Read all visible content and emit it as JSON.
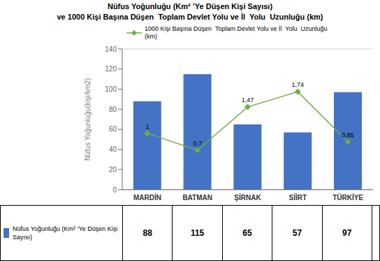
{
  "chart_data": {
    "type": "bar",
    "title": "Nüfus Yoğunluğu (Km² ’Ye Düşen Kişi Sayısı)\nve 1000 Kişi Başına Düşen  Toplam Devlet Yolu ve İl  Yolu  Uzunluğu (km)",
    "categories": [
      "MARDİN",
      "BATMAN",
      "ŞİRNAK",
      "SİİRT",
      "TÜRKİYE"
    ],
    "ylabel": "Nüfus Yoğunluğu(kişi/km2)",
    "ylim": [
      0,
      140
    ],
    "yticks": [
      0,
      20,
      40,
      60,
      80,
      100,
      120,
      140
    ],
    "y2lim": [
      0,
      2.5
    ],
    "grid": true,
    "legend": "upper left",
    "series": [
      {
        "name": "Nüfus Yoğunluğu (Km² ’Ye Düşen Kişi\nSayısı)",
        "type": "bar",
        "color": "#4472C4",
        "values": [
          88,
          115,
          65,
          57,
          97
        ]
      },
      {
        "name": "1000 Kişi Başına Düşen  Toplam Devlet Yolu ve İl  Yolu  Uzunluğu\n(km)",
        "type": "line",
        "color": "#70AD47",
        "marker": "diamond",
        "axis": "y2",
        "values": [
          1.0,
          0.7,
          1.47,
          1.74,
          0.85
        ],
        "value_labels": [
          "1",
          "0,7",
          "1,47",
          "1,74",
          "0,85"
        ],
        "data_labels": true
      }
    ]
  }
}
